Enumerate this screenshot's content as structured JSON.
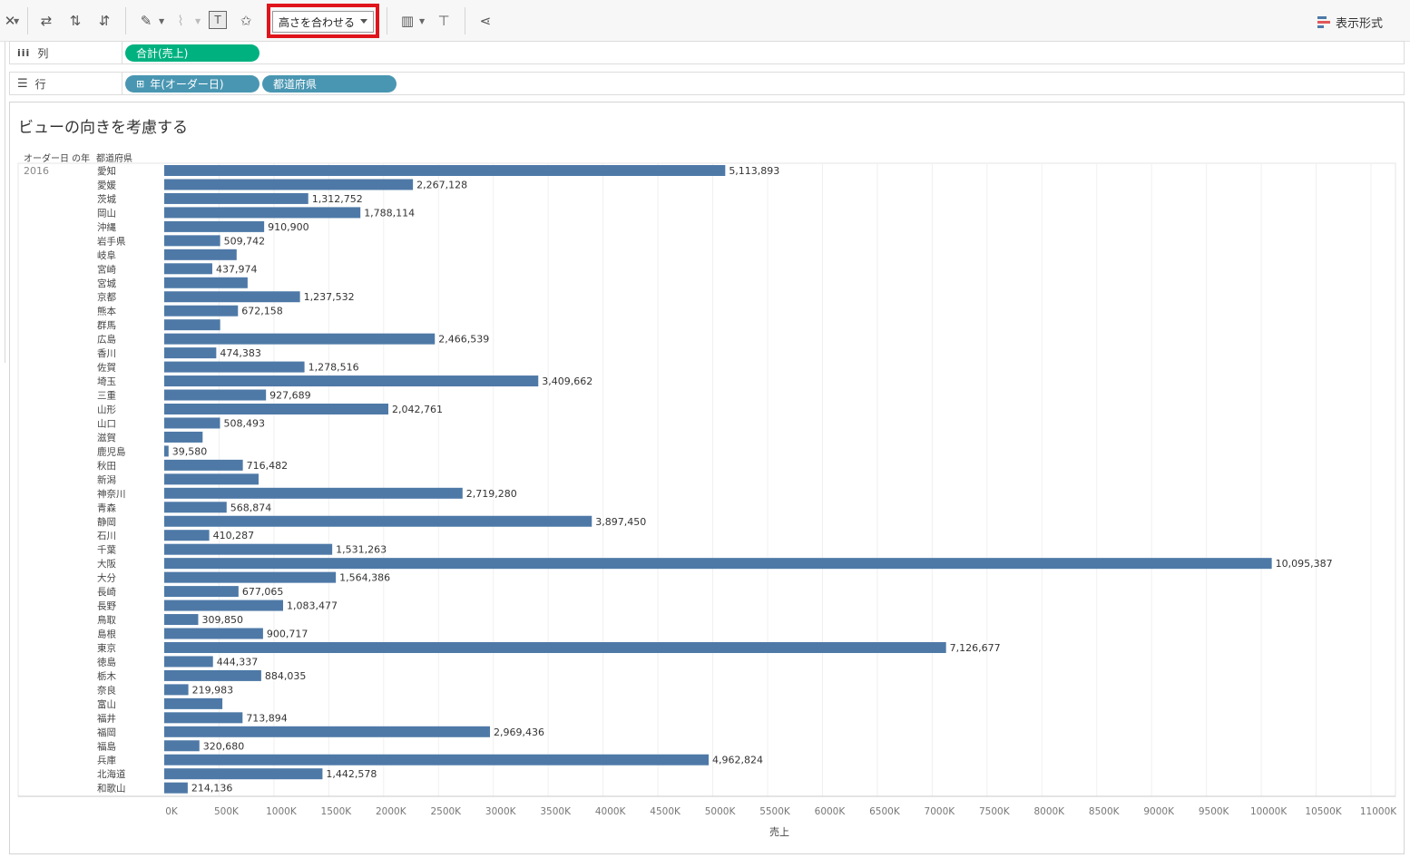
{
  "toolbar": {
    "fit_mode": "高さを合わせる",
    "show_me": "表示形式",
    "accent_highlight": "#e0151b"
  },
  "shelves": {
    "columns": {
      "label": "列",
      "pills": [
        "合計(売上)"
      ]
    },
    "rows": {
      "label": "行",
      "pills": [
        "年(オーダー日)",
        "都道府県"
      ]
    }
  },
  "view": {
    "title": "ビューの向きを考慮する",
    "header_year": "オーダー日 の年",
    "header_pref": "都道府県",
    "year": "2016"
  },
  "chart_data": {
    "type": "bar",
    "orientation": "horizontal",
    "bar_color": "#4e79a7",
    "grid": true,
    "xlabel": "売上",
    "xlim": [
      0,
      11000000
    ],
    "tick_values": [
      0,
      500000,
      1000000,
      1500000,
      2000000,
      2500000,
      3000000,
      3500000,
      4000000,
      4500000,
      5000000,
      5500000,
      6000000,
      6500000,
      7000000,
      7500000,
      8000000,
      8500000,
      9000000,
      9500000,
      10000000,
      10500000,
      11000000
    ],
    "tick_labels": [
      "0K",
      "500K",
      "1000K",
      "1500K",
      "2000K",
      "2500K",
      "3000K",
      "3500K",
      "4000K",
      "4500K",
      "5000K",
      "5500K",
      "6000K",
      "6500K",
      "7000K",
      "7500K",
      "8000K",
      "8500K",
      "9000K",
      "9500K",
      "10000K",
      "10500K",
      "11000K"
    ],
    "categories": [
      "愛知",
      "愛媛",
      "茨城",
      "岡山",
      "沖縄",
      "岩手県",
      "岐阜",
      "宮崎",
      "宮城",
      "京都",
      "熊本",
      "群馬",
      "広島",
      "香川",
      "佐賀",
      "埼玉",
      "三重",
      "山形",
      "山口",
      "滋賀",
      "鹿児島",
      "秋田",
      "新潟",
      "神奈川",
      "青森",
      "静岡",
      "石川",
      "千葉",
      "大阪",
      "大分",
      "長崎",
      "長野",
      "鳥取",
      "島根",
      "東京",
      "徳島",
      "栃木",
      "奈良",
      "富山",
      "福井",
      "福岡",
      "福島",
      "兵庫",
      "北海道",
      "和歌山"
    ],
    "values": [
      5113893,
      2267128,
      1312752,
      1788114,
      910900,
      509742,
      660000,
      437974,
      760000,
      1237532,
      672158,
      510000,
      2466539,
      474383,
      1278516,
      3409662,
      927689,
      2042761,
      508493,
      350000,
      39580,
      716482,
      860000,
      2719280,
      568874,
      3897450,
      410287,
      1531263,
      10095387,
      1564386,
      677065,
      1083477,
      309850,
      900717,
      7126677,
      444337,
      884035,
      219983,
      530000,
      713894,
      2969436,
      320680,
      4962824,
      1442578,
      214136
    ],
    "data_labels": [
      "5,113,893",
      "2,267,128",
      "1,312,752",
      "1,788,114",
      "910,900",
      "509,742",
      "",
      "437,974",
      "",
      "1,237,532",
      "672,158",
      "",
      "2,466,539",
      "474,383",
      "1,278,516",
      "3,409,662",
      "927,689",
      "2,042,761",
      "508,493",
      "",
      "39,580",
      "716,482",
      "",
      "2,719,280",
      "568,874",
      "3,897,450",
      "410,287",
      "1,531,263",
      "10,095,387",
      "1,564,386",
      "677,065",
      "1,083,477",
      "309,850",
      "900,717",
      "7,126,677",
      "444,337",
      "884,035",
      "219,983",
      "",
      "713,894",
      "2,969,436",
      "320,680",
      "4,962,824",
      "1,442,578",
      "214,136"
    ]
  }
}
